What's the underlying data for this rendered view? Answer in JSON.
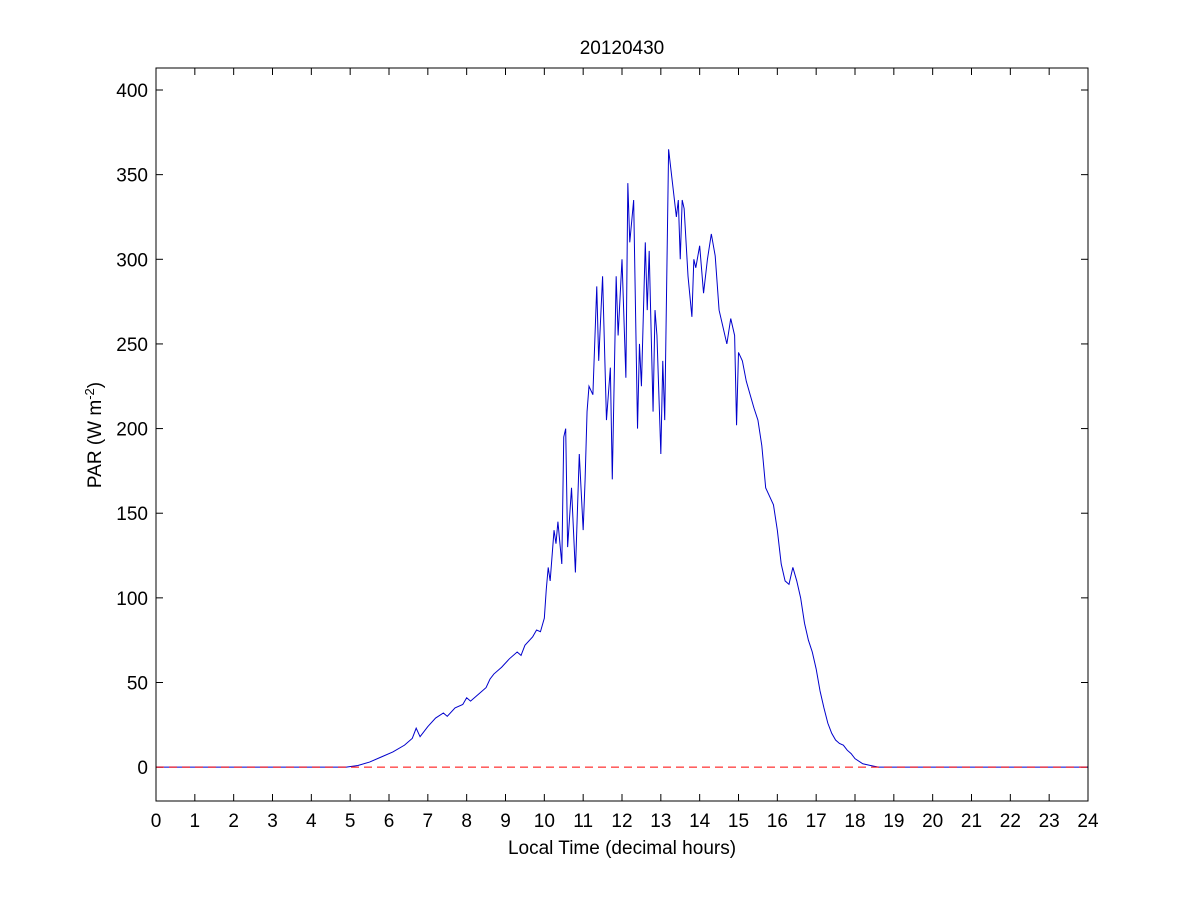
{
  "chart_data": {
    "type": "line",
    "title": "20120430",
    "xlabel": "Local Time (decimal hours)",
    "ylabel_main": "PAR (W m",
    "ylabel_sup": "-2",
    "ylabel_close": ")",
    "xlim": [
      0,
      24
    ],
    "ylim": [
      -20,
      413
    ],
    "x_ticks": [
      0,
      1,
      2,
      3,
      4,
      5,
      6,
      7,
      8,
      9,
      10,
      11,
      12,
      13,
      14,
      15,
      16,
      17,
      18,
      19,
      20,
      21,
      22,
      23,
      24
    ],
    "y_ticks": [
      0,
      50,
      100,
      150,
      200,
      250,
      300,
      350,
      400
    ],
    "grid": false,
    "legend": "none",
    "series": [
      {
        "color": "#0000cc",
        "style": "solid",
        "points": [
          [
            0,
            0
          ],
          [
            4.9,
            0
          ],
          [
            5.2,
            1
          ],
          [
            5.5,
            3
          ],
          [
            5.8,
            6
          ],
          [
            6.1,
            9
          ],
          [
            6.4,
            13
          ],
          [
            6.6,
            17
          ],
          [
            6.7,
            23
          ],
          [
            6.8,
            18
          ],
          [
            7.0,
            24
          ],
          [
            7.2,
            29
          ],
          [
            7.4,
            32
          ],
          [
            7.5,
            30
          ],
          [
            7.7,
            35
          ],
          [
            7.9,
            37
          ],
          [
            8.0,
            41
          ],
          [
            8.1,
            39
          ],
          [
            8.3,
            43
          ],
          [
            8.5,
            47
          ],
          [
            8.6,
            52
          ],
          [
            8.7,
            55
          ],
          [
            8.9,
            59
          ],
          [
            9.1,
            64
          ],
          [
            9.3,
            68
          ],
          [
            9.4,
            66
          ],
          [
            9.5,
            72
          ],
          [
            9.7,
            77
          ],
          [
            9.8,
            81
          ],
          [
            9.9,
            80
          ],
          [
            10.0,
            88
          ],
          [
            10.05,
            105
          ],
          [
            10.1,
            118
          ],
          [
            10.15,
            110
          ],
          [
            10.25,
            140
          ],
          [
            10.3,
            132
          ],
          [
            10.35,
            145
          ],
          [
            10.45,
            120
          ],
          [
            10.5,
            195
          ],
          [
            10.55,
            200
          ],
          [
            10.6,
            130
          ],
          [
            10.7,
            165
          ],
          [
            10.8,
            115
          ],
          [
            10.9,
            185
          ],
          [
            11.0,
            140
          ],
          [
            11.05,
            170
          ],
          [
            11.1,
            210
          ],
          [
            11.15,
            225
          ],
          [
            11.25,
            220
          ],
          [
            11.35,
            284
          ],
          [
            11.4,
            240
          ],
          [
            11.5,
            290
          ],
          [
            11.6,
            205
          ],
          [
            11.7,
            236
          ],
          [
            11.75,
            170
          ],
          [
            11.85,
            290
          ],
          [
            11.9,
            255
          ],
          [
            12.0,
            300
          ],
          [
            12.1,
            230
          ],
          [
            12.15,
            345
          ],
          [
            12.2,
            310
          ],
          [
            12.3,
            335
          ],
          [
            12.4,
            200
          ],
          [
            12.45,
            250
          ],
          [
            12.5,
            225
          ],
          [
            12.6,
            310
          ],
          [
            12.65,
            270
          ],
          [
            12.7,
            305
          ],
          [
            12.8,
            210
          ],
          [
            12.85,
            270
          ],
          [
            12.9,
            255
          ],
          [
            13.0,
            185
          ],
          [
            13.05,
            240
          ],
          [
            13.1,
            205
          ],
          [
            13.2,
            365
          ],
          [
            13.3,
            345
          ],
          [
            13.4,
            325
          ],
          [
            13.45,
            335
          ],
          [
            13.5,
            300
          ],
          [
            13.55,
            335
          ],
          [
            13.6,
            330
          ],
          [
            13.7,
            290
          ],
          [
            13.8,
            266
          ],
          [
            13.85,
            300
          ],
          [
            13.9,
            295
          ],
          [
            14.0,
            308
          ],
          [
            14.1,
            280
          ],
          [
            14.2,
            300
          ],
          [
            14.3,
            315
          ],
          [
            14.4,
            302
          ],
          [
            14.5,
            270
          ],
          [
            14.6,
            260
          ],
          [
            14.7,
            250
          ],
          [
            14.8,
            265
          ],
          [
            14.9,
            255
          ],
          [
            14.95,
            202
          ],
          [
            15.0,
            245
          ],
          [
            15.1,
            240
          ],
          [
            15.2,
            228
          ],
          [
            15.3,
            220
          ],
          [
            15.4,
            212
          ],
          [
            15.5,
            205
          ],
          [
            15.6,
            190
          ],
          [
            15.7,
            165
          ],
          [
            15.8,
            160
          ],
          [
            15.9,
            155
          ],
          [
            16.0,
            140
          ],
          [
            16.1,
            120
          ],
          [
            16.2,
            110
          ],
          [
            16.3,
            108
          ],
          [
            16.4,
            118
          ],
          [
            16.5,
            110
          ],
          [
            16.6,
            100
          ],
          [
            16.7,
            85
          ],
          [
            16.8,
            75
          ],
          [
            16.9,
            68
          ],
          [
            17.0,
            58
          ],
          [
            17.1,
            45
          ],
          [
            17.2,
            35
          ],
          [
            17.3,
            26
          ],
          [
            17.4,
            20
          ],
          [
            17.5,
            16
          ],
          [
            17.6,
            14
          ],
          [
            17.7,
            13
          ],
          [
            17.8,
            10
          ],
          [
            17.9,
            8
          ],
          [
            18.0,
            5
          ],
          [
            18.2,
            2
          ],
          [
            18.4,
            1
          ],
          [
            18.6,
            0
          ],
          [
            24,
            0
          ]
        ]
      },
      {
        "color": "#ff0000",
        "style": "dashed",
        "points": [
          [
            0,
            0
          ],
          [
            24,
            0
          ]
        ]
      }
    ]
  }
}
